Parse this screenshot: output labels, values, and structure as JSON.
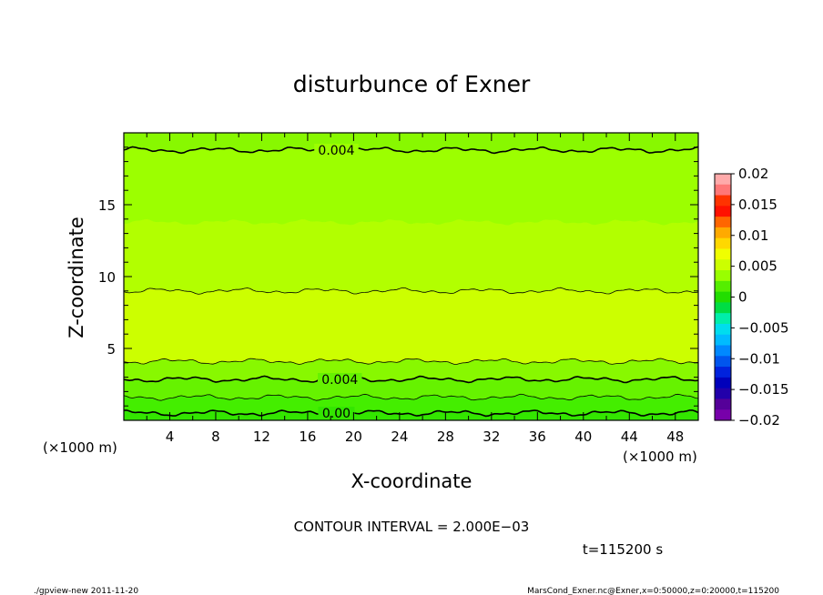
{
  "chart_data": {
    "type": "contour",
    "title": "disturbunce of Exner",
    "xlabel": "X-coordinate",
    "ylabel": "Z-coordinate",
    "x_unit_left": "(×1000 m)",
    "x_unit_right": "(×1000 m)",
    "xlim": [
      0,
      50
    ],
    "ylim": [
      0,
      20
    ],
    "x_ticks": [
      4,
      8,
      12,
      16,
      20,
      24,
      28,
      32,
      36,
      40,
      44,
      48
    ],
    "y_ticks": [
      5,
      10,
      15
    ],
    "bands": [
      {
        "z0": 0.0,
        "z1": 0.6,
        "level": "0 to 0.001",
        "color": "#33e600"
      },
      {
        "z0": 0.6,
        "z1": 1.6,
        "level": "0.001 to 0.002",
        "color": "#44ee00"
      },
      {
        "z0": 1.6,
        "z1": 2.9,
        "level": "0.002 to 0.003",
        "color": "#66f200"
      },
      {
        "z0": 2.9,
        "z1": 4.1,
        "level": "0.003 to 0.004",
        "color": "#88f800"
      },
      {
        "z0": 4.1,
        "z1": 9.0,
        "level": "0.005 to 0.006",
        "color": "#ccff00"
      },
      {
        "z0": 9.0,
        "z1": 13.8,
        "level": "0.004 to 0.005",
        "color": "#b2ff00"
      },
      {
        "z0": 13.8,
        "z1": 18.8,
        "level": "0.004 to 0.005",
        "color": "#9cff00"
      },
      {
        "z0": 18.8,
        "z1": 20.0,
        "level": "0.003 to 0.004",
        "color": "#88f800"
      }
    ],
    "contours": [
      {
        "z": 0.5,
        "label": "0.00",
        "label_x": 18.5,
        "thick": true
      },
      {
        "z": 1.6,
        "label": "",
        "thick": false
      },
      {
        "z": 2.85,
        "label": "0.004",
        "label_x": 18.8,
        "thick": true
      },
      {
        "z": 4.1,
        "label": "",
        "thick": false
      },
      {
        "z": 9.0,
        "label": "",
        "thick": false
      },
      {
        "z": 18.8,
        "label": "0.004",
        "label_x": 18.5,
        "thick": true
      }
    ],
    "colorbar": {
      "range": [
        -0.02,
        0.02
      ],
      "labels": [
        "0.02",
        "0.015",
        "0.01",
        "0.005",
        "0",
        "−0.005",
        "−0.01",
        "−0.015",
        "−0.02"
      ],
      "colors": [
        "#ffaaaa",
        "#ff7777",
        "#ff3300",
        "#ff1100",
        "#ff6600",
        "#ffaa00",
        "#ffd800",
        "#f0ff00",
        "#ccff00",
        "#99ff00",
        "#55ee00",
        "#22dd00",
        "#00dd44",
        "#00eeaa",
        "#00ddee",
        "#00bbff",
        "#0088ff",
        "#0055ee",
        "#0022dd",
        "#0000bb",
        "#2200aa",
        "#550099",
        "#7700aa"
      ]
    },
    "contour_interval_text": "CONTOUR INTERVAL = 2.000E−03",
    "time_text": "t=115200 s"
  },
  "footer": {
    "left": "./gpview-new 2011-11-20",
    "right": "MarsCond_Exner.nc@Exner,x=0:50000,z=0:20000,t=115200"
  }
}
